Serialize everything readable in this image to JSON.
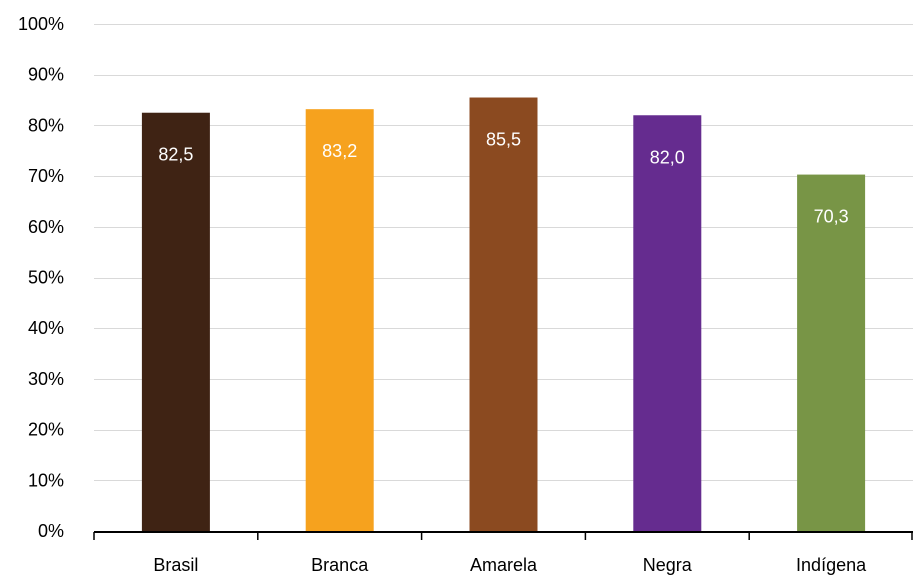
{
  "chart_data": {
    "type": "bar",
    "title": "",
    "xlabel": "",
    "ylabel": "",
    "categories": [
      "Brasil",
      "Branca",
      "Amarela",
      "Negra",
      "Indígena"
    ],
    "values": [
      82.5,
      83.2,
      85.5,
      82.0,
      70.3
    ],
    "value_labels": [
      "82,5",
      "83,2",
      "85,5",
      "82,0",
      "70,3"
    ],
    "colors": [
      "#3f2314",
      "#f6a21e",
      "#8b4a20",
      "#652c8f",
      "#789546"
    ],
    "ylim": [
      0,
      100
    ],
    "y_ticks": [
      0,
      10,
      20,
      30,
      40,
      50,
      60,
      70,
      80,
      90,
      100
    ],
    "y_tick_labels": [
      "0%",
      "10%",
      "20%",
      "30%",
      "40%",
      "50%",
      "60%",
      "70%",
      "80%",
      "90%",
      "100%"
    ],
    "grid": true,
    "legend": "none"
  }
}
